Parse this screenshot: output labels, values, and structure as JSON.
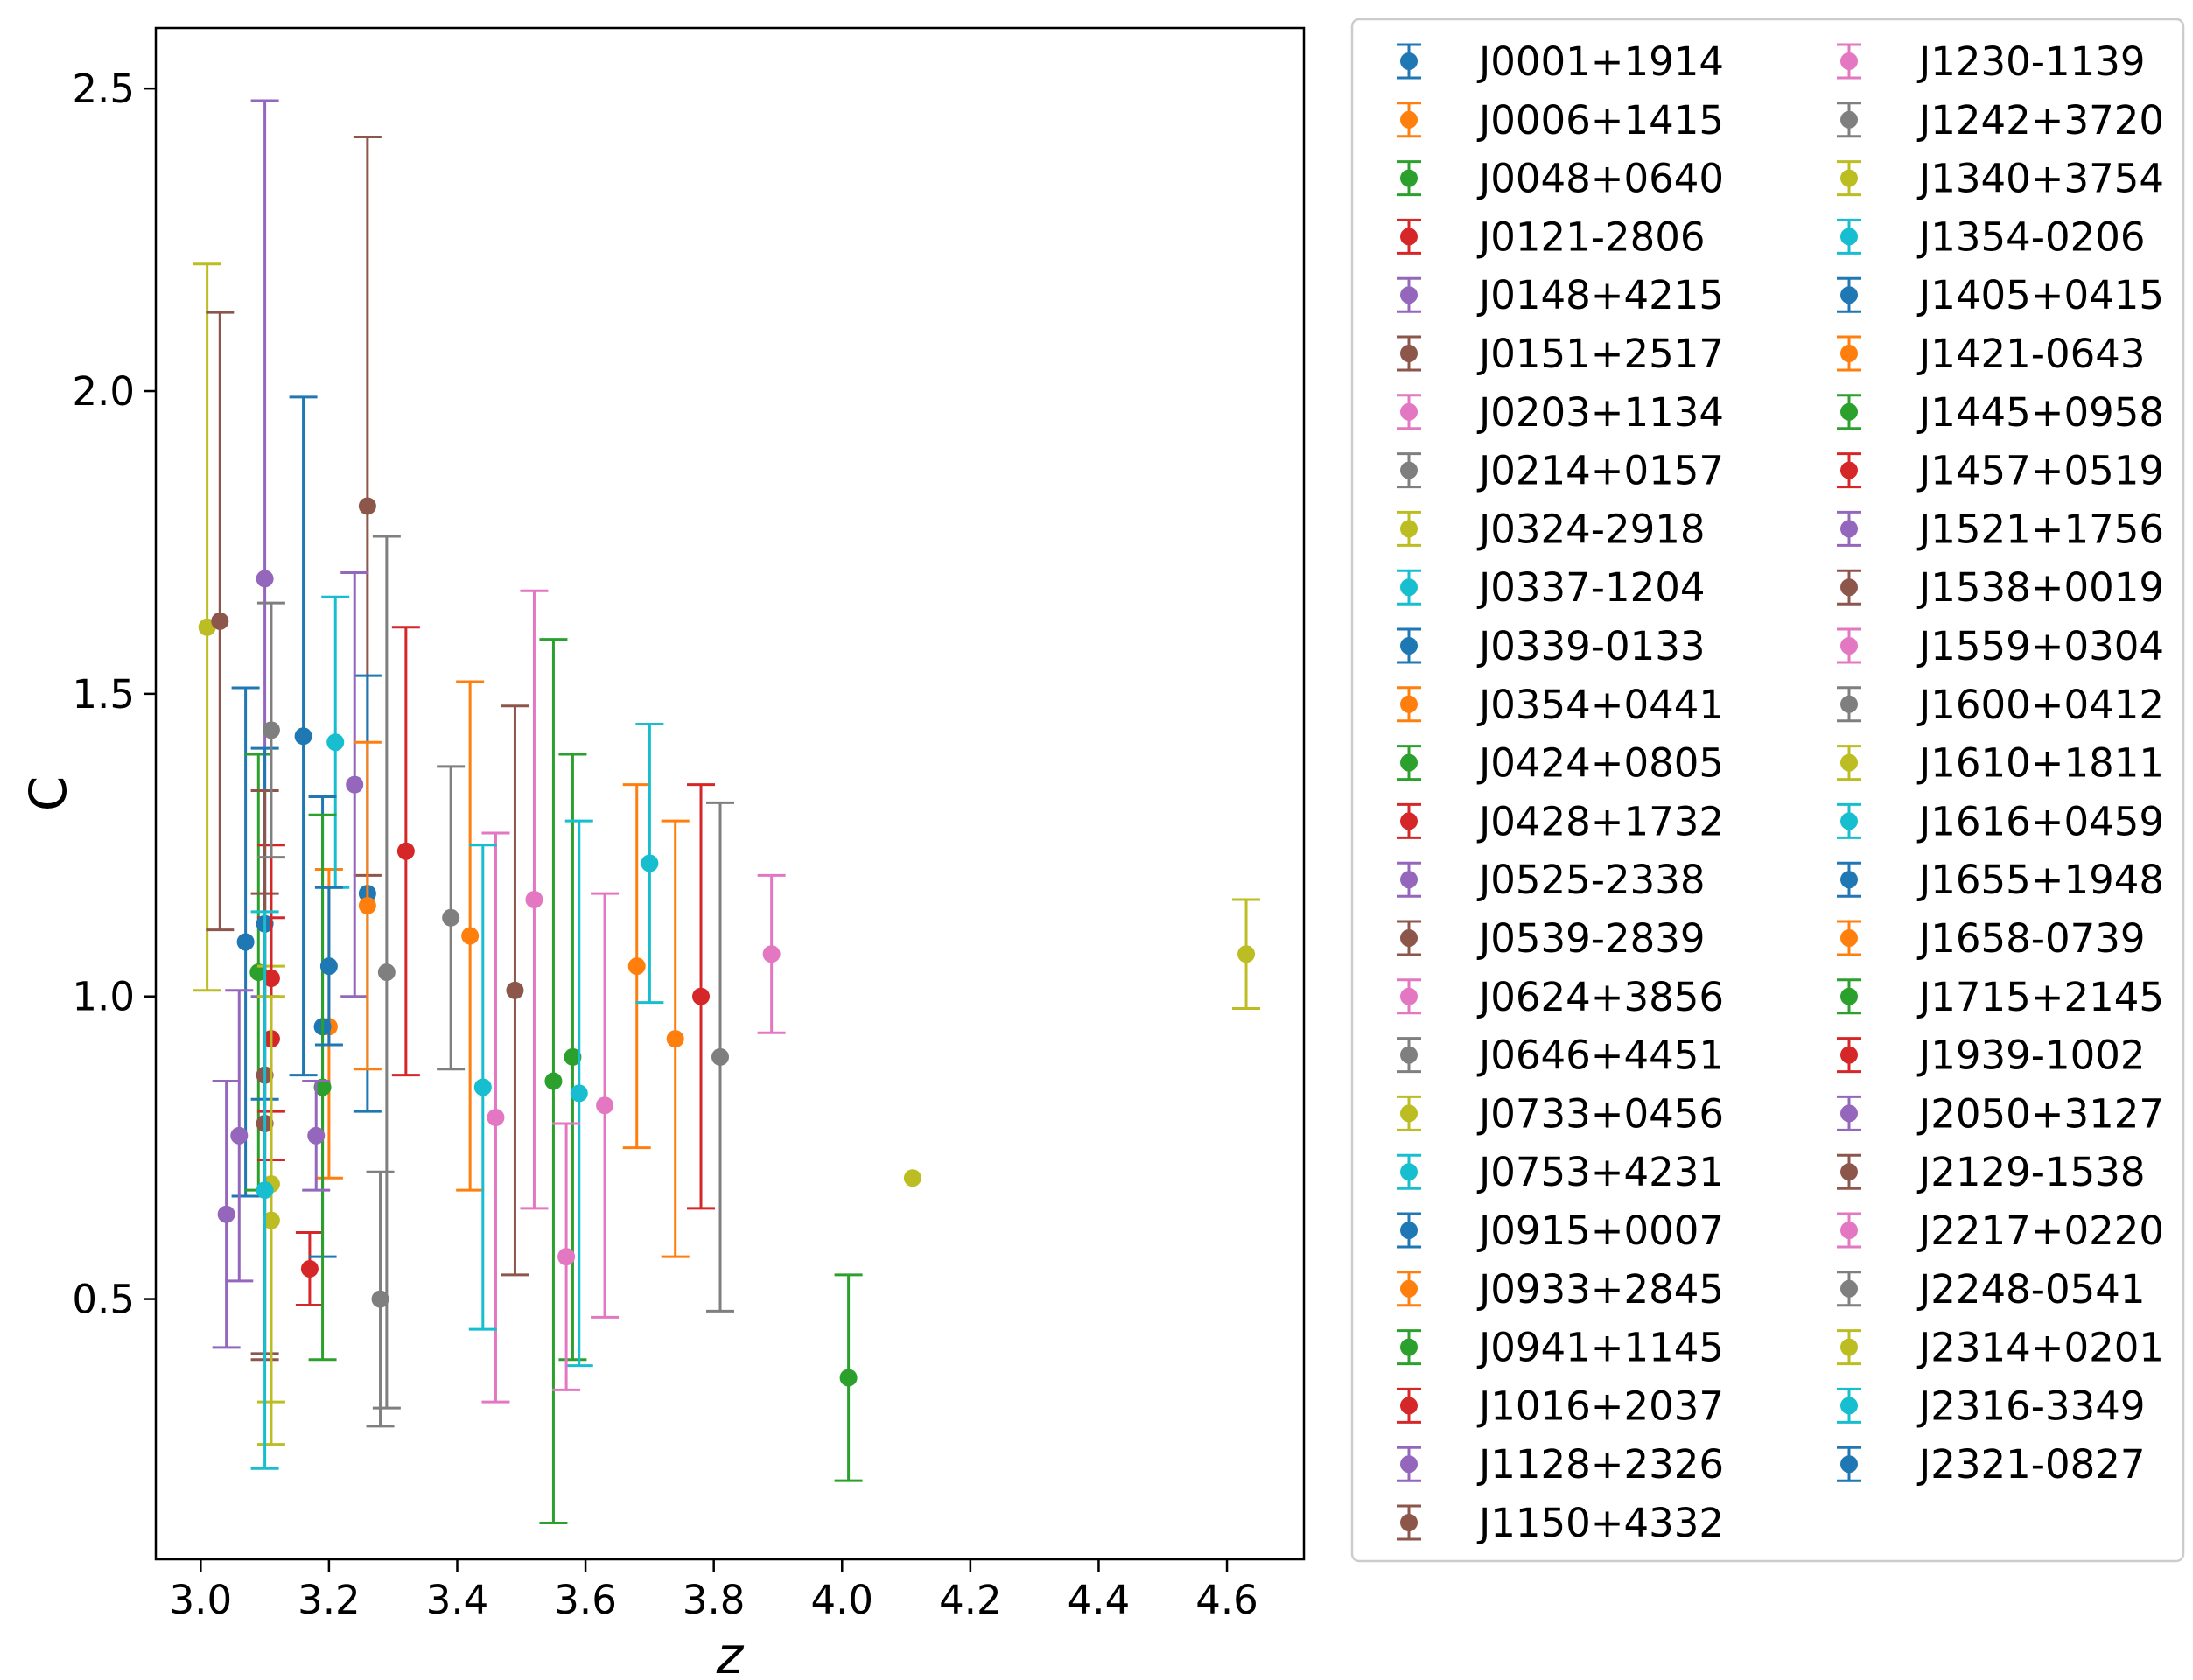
{
  "chart_data": {
    "type": "scatter",
    "subtype": "errorbar",
    "title": "",
    "xlabel": "z",
    "ylabel": "C",
    "xlim": [
      2.93,
      4.72
    ],
    "ylim": [
      0.07,
      2.6
    ],
    "x_ticks": [
      "3.0",
      "3.2",
      "3.4",
      "3.6",
      "3.8",
      "4.0",
      "4.2",
      "4.4",
      "4.6"
    ],
    "y_ticks": [
      "0.5",
      "1.0",
      "1.5",
      "2.0",
      "2.5"
    ],
    "grid": false,
    "legend_position": "outside-right",
    "legend_columns": 2,
    "series": [
      {
        "name": "J0001+1914",
        "color": "#1f77b4",
        "x": 3.07,
        "y": 1.09,
        "y_err_low": 0.42,
        "y_err_high": 0.42
      },
      {
        "name": "J0006+1415",
        "color": "#ff7f0e",
        "x": 3.2,
        "y": 0.95,
        "y_err_low": 0.25,
        "y_err_high": 0.26
      },
      {
        "name": "J0048+0640",
        "color": "#2ca02c",
        "x": 3.09,
        "y": 1.04,
        "y_err_low": 0.36,
        "y_err_high": 0.36
      },
      {
        "name": "J0121-2806",
        "color": "#d62728",
        "x": 3.17,
        "y": 0.55,
        "y_err_low": 0.06,
        "y_err_high": 0.06
      },
      {
        "name": "J0148+4215",
        "color": "#9467bd",
        "x": 3.1,
        "y": 1.69,
        "y_err_low": 0.69,
        "y_err_high": 0.79
      },
      {
        "name": "J0151+2517",
        "color": "#8c564b",
        "x": 3.26,
        "y": 1.81,
        "y_err_low": 0.61,
        "y_err_high": 0.61
      },
      {
        "name": "J0203+1134",
        "color": "#e377c2",
        "x": 3.52,
        "y": 1.16,
        "y_err_low": 0.51,
        "y_err_high": 0.51
      },
      {
        "name": "J0214+0157",
        "color": "#7f7f7f",
        "x": 3.39,
        "y": 1.13,
        "y_err_low": 0.25,
        "y_err_high": 0.25
      },
      {
        "name": "J0324-2918",
        "color": "#bcbd22",
        "x": 3.01,
        "y": 1.61,
        "y_err_low": 0.6,
        "y_err_high": 0.6
      },
      {
        "name": "J0337-1204",
        "color": "#17becf",
        "x": 3.21,
        "y": 1.42,
        "y_err_low": 0.24,
        "y_err_high": 0.24
      },
      {
        "name": "J0339-0133",
        "color": "#1f77b4",
        "x": 3.26,
        "y": 1.17,
        "y_err_low": 0.36,
        "y_err_high": 0.36
      },
      {
        "name": "J0354+0441",
        "color": "#ff7f0e",
        "x": 3.42,
        "y": 1.1,
        "y_err_low": 0.42,
        "y_err_high": 0.42
      },
      {
        "name": "J0424+0805",
        "color": "#2ca02c",
        "x": 3.55,
        "y": 0.86,
        "y_err_low": 0.73,
        "y_err_high": 0.73
      },
      {
        "name": "J0428+1732",
        "color": "#d62728",
        "x": 3.32,
        "y": 1.24,
        "y_err_low": 0.37,
        "y_err_high": 0.37
      },
      {
        "name": "J0525-2338",
        "color": "#9467bd",
        "x": 3.24,
        "y": 1.35,
        "y_err_low": 0.35,
        "y_err_high": 0.35
      },
      {
        "name": "J0539-2839",
        "color": "#8c564b",
        "x": 3.49,
        "y": 1.01,
        "y_err_low": 0.47,
        "y_err_high": 0.47
      },
      {
        "name": "J0624+3856",
        "color": "#e377c2",
        "x": 3.46,
        "y": 0.8,
        "y_err_low": 0.47,
        "y_err_high": 0.47
      },
      {
        "name": "J0646+4451",
        "color": "#7f7f7f",
        "x": 3.29,
        "y": 1.04,
        "y_err_low": 0.72,
        "y_err_high": 0.72
      },
      {
        "name": "J0733+0456",
        "color": "#bcbd22",
        "x": 3.11,
        "y": 0.69,
        "y_err_low": 0.36,
        "y_err_high": 0.36
      },
      {
        "name": "J0753+4231",
        "color": "#17becf",
        "x": 3.44,
        "y": 0.85,
        "y_err_low": 0.4,
        "y_err_high": 0.4
      },
      {
        "name": "J0915+0007",
        "color": "#1f77b4",
        "x": 3.16,
        "y": 1.43,
        "y_err_low": 0.56,
        "y_err_high": 0.56
      },
      {
        "name": "J0933+2845",
        "color": "#ff7f0e",
        "x": 3.68,
        "y": 1.05,
        "y_err_low": 0.3,
        "y_err_high": 0.3
      },
      {
        "name": "J0941+1145",
        "color": "#2ca02c",
        "x": 3.58,
        "y": 0.9,
        "y_err_low": 0.5,
        "y_err_high": 0.5
      },
      {
        "name": "J1016+2037",
        "color": "#d62728",
        "x": 3.78,
        "y": 1.0,
        "y_err_low": 0.35,
        "y_err_high": 0.35
      },
      {
        "name": "J1128+2326",
        "color": "#9467bd",
        "x": 3.06,
        "y": 0.77,
        "y_err_low": 0.24,
        "y_err_high": 0.24
      },
      {
        "name": "J1150+4332",
        "color": "#8c564b",
        "x": 3.03,
        "y": 1.62,
        "y_err_low": 0.51,
        "y_err_high": 0.51
      },
      {
        "name": "J1230-1139",
        "color": "#e377c2",
        "x": 3.63,
        "y": 0.82,
        "y_err_low": 0.35,
        "y_err_high": 0.35
      },
      {
        "name": "J1242+3720",
        "color": "#7f7f7f",
        "x": 3.81,
        "y": 0.9,
        "y_err_low": 0.42,
        "y_err_high": 0.42
      },
      {
        "name": "J1340+3754",
        "color": "#bcbd22",
        "x": 4.11,
        "y": 0.7,
        "y_err_low": 0.0,
        "y_err_high": 0.0
      },
      {
        "name": "J1354-0206",
        "color": "#17becf",
        "x": 3.59,
        "y": 0.84,
        "y_err_low": 0.45,
        "y_err_high": 0.45
      },
      {
        "name": "J1405+0415",
        "color": "#1f77b4",
        "x": 3.19,
        "y": 0.95,
        "y_err_low": 0.38,
        "y_err_high": 0.38
      },
      {
        "name": "J1421-0643",
        "color": "#ff7f0e",
        "x": 3.74,
        "y": 0.93,
        "y_err_low": 0.36,
        "y_err_high": 0.36
      },
      {
        "name": "J1445+0958",
        "color": "#2ca02c",
        "x": 3.19,
        "y": 0.85,
        "y_err_low": 0.45,
        "y_err_high": 0.45
      },
      {
        "name": "J1457+0519",
        "color": "#d62728",
        "x": 3.11,
        "y": 0.93,
        "y_err_low": 0.2,
        "y_err_high": 0.2
      },
      {
        "name": "J1521+1756",
        "color": "#9467bd",
        "x": 3.04,
        "y": 0.64,
        "y_err_low": 0.22,
        "y_err_high": 0.22
      },
      {
        "name": "J1538+0019",
        "color": "#8c564b",
        "x": 3.1,
        "y": 0.79,
        "y_err_low": 0.38,
        "y_err_high": 0.38
      },
      {
        "name": "J1559+0304",
        "color": "#e377c2",
        "x": 3.89,
        "y": 1.07,
        "y_err_low": 0.13,
        "y_err_high": 0.13
      },
      {
        "name": "J1600+0412",
        "color": "#7f7f7f",
        "x": 3.28,
        "y": 0.5,
        "y_err_low": 0.21,
        "y_err_high": 0.21
      },
      {
        "name": "J1610+1811",
        "color": "#bcbd22",
        "x": 4.63,
        "y": 1.07,
        "y_err_low": 0.09,
        "y_err_high": 0.09
      },
      {
        "name": "J1616+0459",
        "color": "#17becf",
        "x": 3.7,
        "y": 1.22,
        "y_err_low": 0.23,
        "y_err_high": 0.23
      },
      {
        "name": "J1655+1948",
        "color": "#1f77b4",
        "x": 3.1,
        "y": 1.12,
        "y_err_low": 0.29,
        "y_err_high": 0.29
      },
      {
        "name": "J1658-0739",
        "color": "#ff7f0e",
        "x": 3.26,
        "y": 1.15,
        "y_err_low": 0.27,
        "y_err_high": 0.27
      },
      {
        "name": "J1715+2145",
        "color": "#2ca02c",
        "x": 4.01,
        "y": 0.37,
        "y_err_low": 0.17,
        "y_err_high": 0.17
      },
      {
        "name": "J1939-1002",
        "color": "#d62728",
        "x": 3.11,
        "y": 1.03,
        "y_err_low": 0.22,
        "y_err_high": 0.22
      },
      {
        "name": "J2050+3127",
        "color": "#9467bd",
        "x": 3.18,
        "y": 0.77,
        "y_err_low": 0.09,
        "y_err_high": 0.09
      },
      {
        "name": "J2129-1538",
        "color": "#8c564b",
        "x": 3.1,
        "y": 0.87,
        "y_err_low": 0.47,
        "y_err_high": 0.47
      },
      {
        "name": "J2217+0220",
        "color": "#e377c2",
        "x": 3.57,
        "y": 0.57,
        "y_err_low": 0.22,
        "y_err_high": 0.22
      },
      {
        "name": "J2248-0541",
        "color": "#7f7f7f",
        "x": 3.11,
        "y": 1.44,
        "y_err_low": 0.21,
        "y_err_high": 0.21
      },
      {
        "name": "J2314+0201",
        "color": "#bcbd22",
        "x": 3.11,
        "y": 0.63,
        "y_err_low": 0.37,
        "y_err_high": 0.37
      },
      {
        "name": "J2316-3349",
        "color": "#17becf",
        "x": 3.1,
        "y": 0.68,
        "y_err_low": 0.46,
        "y_err_high": 0.46
      },
      {
        "name": "J2321-0827",
        "color": "#1f77b4",
        "x": 3.2,
        "y": 1.05,
        "y_err_low": 0.13,
        "y_err_high": 0.13
      }
    ]
  }
}
